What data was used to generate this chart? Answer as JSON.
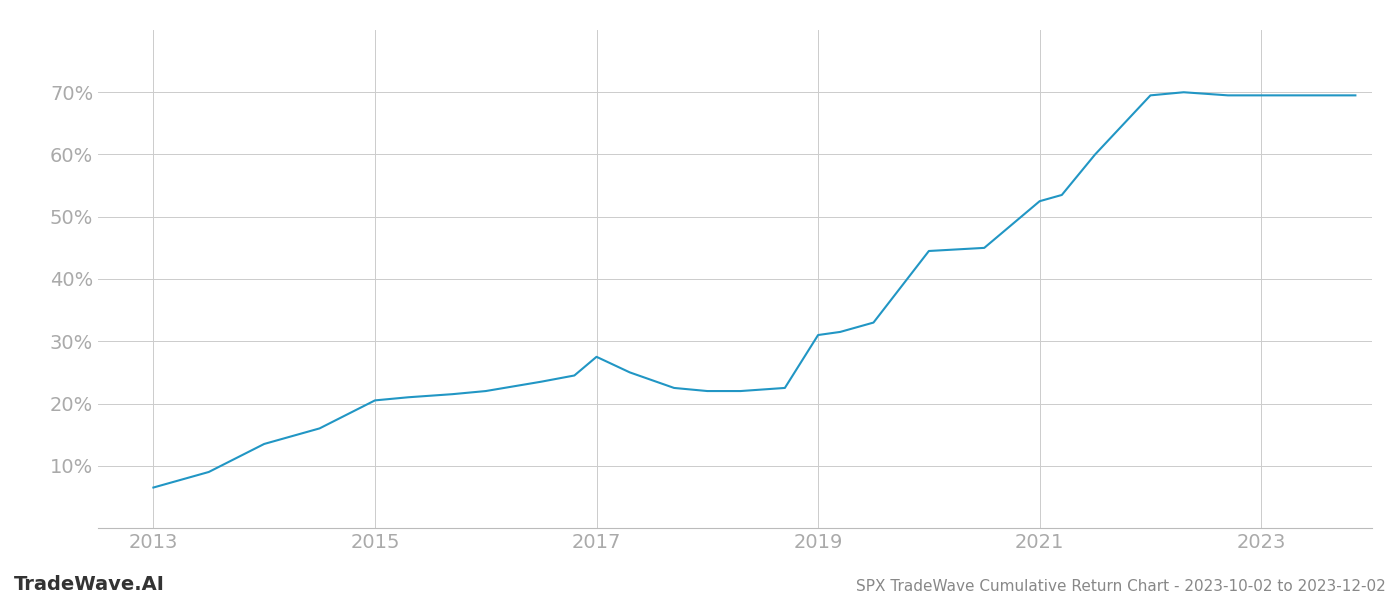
{
  "title": "SPX TradeWave Cumulative Return Chart - 2023-10-02 to 2023-12-02",
  "watermark": "TradeWave.AI",
  "line_color": "#2196c4",
  "background_color": "#ffffff",
  "grid_color": "#cccccc",
  "x_ticks": [
    2013,
    2015,
    2017,
    2019,
    2021,
    2023
  ],
  "data_points": [
    [
      2013.0,
      6.5
    ],
    [
      2013.5,
      9.0
    ],
    [
      2014.0,
      13.5
    ],
    [
      2014.5,
      16.0
    ],
    [
      2015.0,
      20.5
    ],
    [
      2015.3,
      21.0
    ],
    [
      2015.7,
      21.5
    ],
    [
      2016.0,
      22.0
    ],
    [
      2016.5,
      23.5
    ],
    [
      2016.8,
      24.5
    ],
    [
      2017.0,
      27.5
    ],
    [
      2017.3,
      25.0
    ],
    [
      2017.7,
      22.5
    ],
    [
      2018.0,
      22.0
    ],
    [
      2018.3,
      22.0
    ],
    [
      2018.7,
      22.5
    ],
    [
      2019.0,
      31.0
    ],
    [
      2019.2,
      31.5
    ],
    [
      2019.5,
      33.0
    ],
    [
      2020.0,
      44.5
    ],
    [
      2020.5,
      45.0
    ],
    [
      2021.0,
      52.5
    ],
    [
      2021.2,
      53.5
    ],
    [
      2021.5,
      60.0
    ],
    [
      2022.0,
      69.5
    ],
    [
      2022.3,
      70.0
    ],
    [
      2022.7,
      69.5
    ],
    [
      2023.0,
      69.5
    ],
    [
      2023.5,
      69.5
    ],
    [
      2023.85,
      69.5
    ]
  ],
  "ylim": [
    0,
    80
  ],
  "yticks": [
    10,
    20,
    30,
    40,
    50,
    60,
    70
  ],
  "xlim": [
    2012.5,
    2024.0
  ],
  "title_fontsize": 11,
  "watermark_fontsize": 14,
  "axis_label_color": "#aaaaaa",
  "title_color": "#888888",
  "tick_fontsize": 14
}
